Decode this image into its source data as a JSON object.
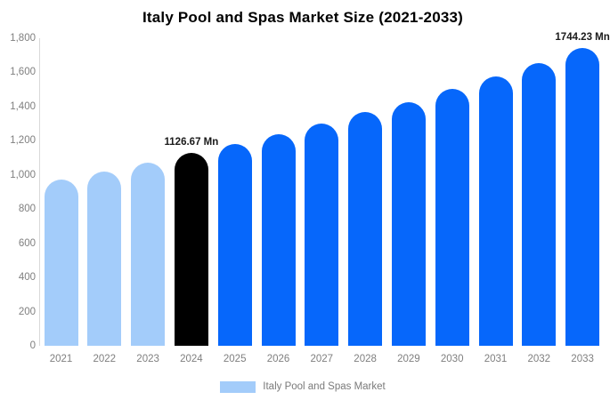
{
  "title": "Italy Pool and Spas Market Size (2021-2033)",
  "colors": {
    "historical": "#A3CCFA",
    "base_year": "#000000",
    "forecast": "#0667FB",
    "axis_line": "#D9D9D9",
    "tick_text": "#7F7F7F",
    "background": "#FFFFFF"
  },
  "chart_data": {
    "type": "bar",
    "title": "Italy Pool and Spas Market Size (2021-2033)",
    "unit": "Mn",
    "categories": [
      "2021",
      "2022",
      "2023",
      "2024",
      "2025",
      "2026",
      "2027",
      "2028",
      "2029",
      "2030",
      "2031",
      "2032",
      "2033"
    ],
    "values": [
      973,
      1021,
      1072,
      1126.67,
      1183,
      1240,
      1302,
      1366,
      1425,
      1503,
      1575,
      1653,
      1744.23
    ],
    "value_roles": [
      "historical",
      "historical",
      "historical",
      "base_year",
      "forecast",
      "forecast",
      "forecast",
      "forecast",
      "forecast",
      "forecast",
      "forecast",
      "forecast",
      "forecast"
    ],
    "data_labels": [
      {
        "category": "2024",
        "text": "1126.67 Mn"
      },
      {
        "category": "2033",
        "text": "1744.23 Mn"
      }
    ],
    "xlabel": "",
    "ylabel": "",
    "ylim": [
      0,
      1800
    ],
    "y_tick_values": [
      0,
      200,
      400,
      600,
      800,
      1000,
      1200,
      1400,
      1600,
      1800
    ],
    "y_tick_labels": [
      "0",
      "200",
      "400",
      "600",
      "800",
      "1,000",
      "1,200",
      "1,400",
      "1,600",
      "1,800"
    ],
    "grid": false,
    "legend_position": "bottom"
  },
  "legend": {
    "items": [
      {
        "label": "Italy Pool and Spas Market",
        "swatch_role": "historical"
      }
    ]
  }
}
